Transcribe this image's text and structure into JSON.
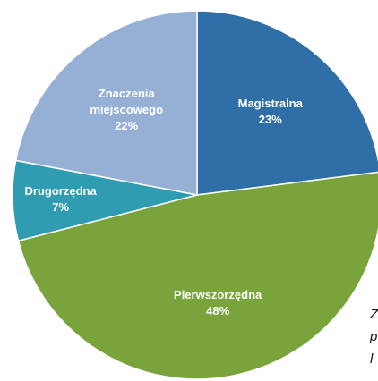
{
  "chart_data": {
    "type": "pie",
    "categories": [
      "Magistralna",
      "Pierwszorzędna",
      "Drugorzędna",
      "Znaczenia miejscowego"
    ],
    "values": [
      23,
      48,
      7,
      22
    ],
    "value_labels": [
      "23%",
      "48%",
      "7%",
      "22%"
    ],
    "colors": [
      "#2f6ea6",
      "#78a43b",
      "#2f9cb2",
      "#95afd5"
    ],
    "side_text": [
      "Z",
      "p",
      "l"
    ]
  }
}
